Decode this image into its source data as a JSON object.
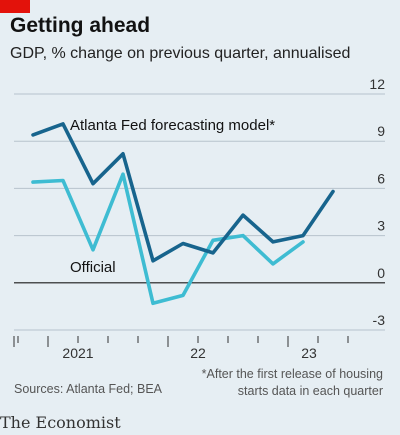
{
  "header": {
    "title": "Getting ahead",
    "subtitle": "GDP, % change on previous quarter, annualised"
  },
  "chart_data": {
    "type": "line",
    "title": "Getting ahead",
    "subtitle": "GDP, % change on previous quarter, annualised",
    "x_labels": [
      "2021",
      "22",
      "23"
    ],
    "ylim": [
      -3,
      12
    ],
    "yticks": [
      -3,
      0,
      3,
      6,
      9,
      12
    ],
    "grid": true,
    "series": [
      {
        "name": "Atlanta Fed forecasting model*",
        "color": "#17648d",
        "points": [
          [
            "2020-Q4",
            9.4
          ],
          [
            "2021-Q1",
            10.1
          ],
          [
            "2021-Q2",
            6.3
          ],
          [
            "2021-Q3",
            8.2
          ],
          [
            "2021-Q4",
            1.4
          ],
          [
            "2022-Q1",
            2.5
          ],
          [
            "2022-Q2",
            1.9
          ],
          [
            "2022-Q3",
            4.3
          ],
          [
            "2022-Q4",
            2.6
          ],
          [
            "2023-Q1",
            3.0
          ],
          [
            "2023-Q2",
            5.8
          ]
        ]
      },
      {
        "name": "Official",
        "color": "#3ebcd2",
        "points": [
          [
            "2020-Q4",
            6.4
          ],
          [
            "2021-Q1",
            6.5
          ],
          [
            "2021-Q2",
            2.1
          ],
          [
            "2021-Q3",
            6.9
          ],
          [
            "2021-Q4",
            -1.3
          ],
          [
            "2022-Q1",
            -0.8
          ],
          [
            "2022-Q2",
            2.7
          ],
          [
            "2022-Q3",
            3.0
          ],
          [
            "2022-Q4",
            1.2
          ],
          [
            "2023-Q1",
            2.6
          ]
        ]
      }
    ]
  },
  "footer": {
    "source": "Sources: Atlanta Fed; BEA",
    "note_line1": "*After the first release of housing",
    "note_line2": "starts data in each quarter",
    "brand": "The Economist"
  }
}
